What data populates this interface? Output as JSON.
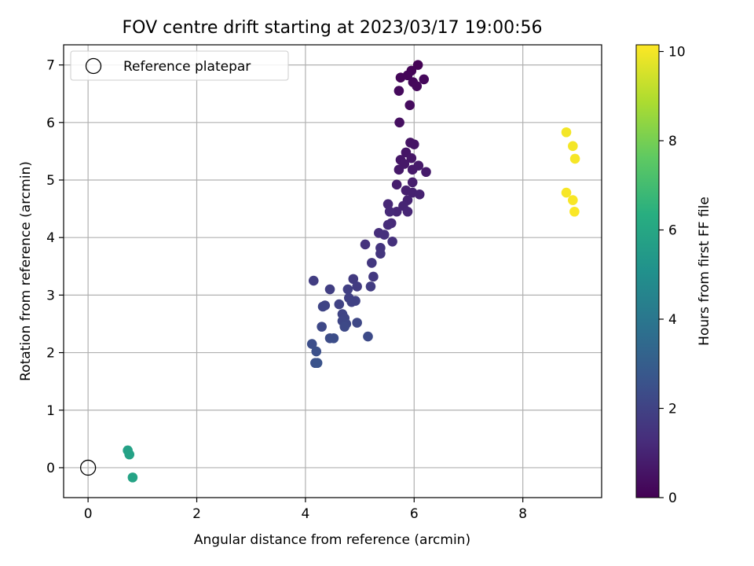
{
  "chart_data": {
    "type": "scatter",
    "title": "FOV centre drift starting at 2023/03/17 19:00:56",
    "xlabel": "Angular distance from reference (arcmin)",
    "ylabel": "Rotation from reference (arcmin)",
    "xlim": [
      -0.45,
      9.45
    ],
    "ylim": [
      -0.52,
      7.35
    ],
    "xticks": [
      0,
      2,
      4,
      6,
      8
    ],
    "yticks": [
      0,
      1,
      2,
      3,
      4,
      5,
      6,
      7
    ],
    "grid": true,
    "legend": {
      "position": "top-left",
      "entries": [
        "Reference platepar"
      ]
    },
    "reference_point": {
      "x": 0,
      "y": 0
    },
    "colorbar": {
      "label": "Hours from first FF file",
      "min": 0,
      "max": 10.15,
      "ticks": [
        0,
        2,
        4,
        6,
        8,
        10
      ],
      "colormap": "viridis"
    },
    "colors": {
      "grid": "#b0b0b0",
      "axis": "#000000"
    },
    "points": [
      {
        "x": 6.07,
        "y": 7.0,
        "t": 0.05
      },
      {
        "x": 5.95,
        "y": 6.9,
        "t": 0.1
      },
      {
        "x": 5.88,
        "y": 6.82,
        "t": 0.12
      },
      {
        "x": 5.75,
        "y": 6.78,
        "t": 0.15
      },
      {
        "x": 5.98,
        "y": 6.7,
        "t": 0.2
      },
      {
        "x": 6.18,
        "y": 6.75,
        "t": 0.22
      },
      {
        "x": 6.05,
        "y": 6.63,
        "t": 0.25
      },
      {
        "x": 5.72,
        "y": 6.55,
        "t": 0.28
      },
      {
        "x": 5.92,
        "y": 6.3,
        "t": 0.32
      },
      {
        "x": 5.73,
        "y": 6.0,
        "t": 0.4
      },
      {
        "x": 5.93,
        "y": 5.65,
        "t": 0.55
      },
      {
        "x": 6.0,
        "y": 5.62,
        "t": 0.58
      },
      {
        "x": 5.85,
        "y": 5.48,
        "t": 0.6
      },
      {
        "x": 5.75,
        "y": 5.35,
        "t": 0.62
      },
      {
        "x": 5.95,
        "y": 5.38,
        "t": 0.65
      },
      {
        "x": 5.82,
        "y": 5.28,
        "t": 0.68
      },
      {
        "x": 5.72,
        "y": 5.18,
        "t": 0.7
      },
      {
        "x": 5.97,
        "y": 5.18,
        "t": 0.72
      },
      {
        "x": 6.08,
        "y": 5.25,
        "t": 0.75
      },
      {
        "x": 6.22,
        "y": 5.14,
        "t": 0.78
      },
      {
        "x": 5.68,
        "y": 4.92,
        "t": 0.82
      },
      {
        "x": 5.97,
        "y": 4.96,
        "t": 0.85
      },
      {
        "x": 5.85,
        "y": 4.82,
        "t": 0.9
      },
      {
        "x": 5.97,
        "y": 4.78,
        "t": 0.95
      },
      {
        "x": 6.1,
        "y": 4.75,
        "t": 0.98
      },
      {
        "x": 5.88,
        "y": 4.65,
        "t": 1.0
      },
      {
        "x": 5.8,
        "y": 4.55,
        "t": 1.05
      },
      {
        "x": 5.88,
        "y": 4.45,
        "t": 1.1
      },
      {
        "x": 5.68,
        "y": 4.45,
        "t": 1.12
      },
      {
        "x": 5.52,
        "y": 4.58,
        "t": 1.15
      },
      {
        "x": 5.55,
        "y": 4.45,
        "t": 1.2
      },
      {
        "x": 5.58,
        "y": 4.25,
        "t": 1.25
      },
      {
        "x": 5.52,
        "y": 4.22,
        "t": 1.3
      },
      {
        "x": 5.35,
        "y": 4.08,
        "t": 1.35
      },
      {
        "x": 5.45,
        "y": 4.05,
        "t": 1.4
      },
      {
        "x": 5.6,
        "y": 3.93,
        "t": 1.45
      },
      {
        "x": 5.1,
        "y": 3.88,
        "t": 1.5
      },
      {
        "x": 5.38,
        "y": 3.82,
        "t": 1.55
      },
      {
        "x": 5.38,
        "y": 3.72,
        "t": 1.6
      },
      {
        "x": 5.22,
        "y": 3.56,
        "t": 1.65
      },
      {
        "x": 5.25,
        "y": 3.32,
        "t": 1.7
      },
      {
        "x": 4.88,
        "y": 3.28,
        "t": 1.75
      },
      {
        "x": 4.95,
        "y": 3.15,
        "t": 1.8
      },
      {
        "x": 5.2,
        "y": 3.15,
        "t": 1.82
      },
      {
        "x": 4.15,
        "y": 3.25,
        "t": 1.85
      },
      {
        "x": 4.45,
        "y": 3.1,
        "t": 1.9
      },
      {
        "x": 4.78,
        "y": 3.1,
        "t": 1.92
      },
      {
        "x": 4.8,
        "y": 2.95,
        "t": 1.95
      },
      {
        "x": 4.92,
        "y": 2.9,
        "t": 1.98
      },
      {
        "x": 4.85,
        "y": 2.88,
        "t": 2.0
      },
      {
        "x": 4.62,
        "y": 2.84,
        "t": 2.02
      },
      {
        "x": 4.36,
        "y": 2.82,
        "t": 2.05
      },
      {
        "x": 4.32,
        "y": 2.8,
        "t": 2.08
      },
      {
        "x": 4.68,
        "y": 2.67,
        "t": 2.1
      },
      {
        "x": 4.72,
        "y": 2.6,
        "t": 2.12
      },
      {
        "x": 4.68,
        "y": 2.55,
        "t": 2.15
      },
      {
        "x": 4.75,
        "y": 2.5,
        "t": 2.18
      },
      {
        "x": 4.95,
        "y": 2.52,
        "t": 2.2
      },
      {
        "x": 4.3,
        "y": 2.45,
        "t": 2.22
      },
      {
        "x": 4.72,
        "y": 2.45,
        "t": 2.25
      },
      {
        "x": 5.15,
        "y": 2.28,
        "t": 2.3
      },
      {
        "x": 4.45,
        "y": 2.25,
        "t": 2.35
      },
      {
        "x": 4.52,
        "y": 2.25,
        "t": 2.4
      },
      {
        "x": 4.12,
        "y": 2.15,
        "t": 2.45
      },
      {
        "x": 4.2,
        "y": 2.02,
        "t": 2.5
      },
      {
        "x": 4.18,
        "y": 1.82,
        "t": 2.55
      },
      {
        "x": 4.22,
        "y": 1.82,
        "t": 2.6
      },
      {
        "x": 0.73,
        "y": 0.3,
        "t": 5.8
      },
      {
        "x": 0.76,
        "y": 0.23,
        "t": 5.85
      },
      {
        "x": 0.82,
        "y": -0.17,
        "t": 5.9
      },
      {
        "x": 8.8,
        "y": 5.83,
        "t": 10.0
      },
      {
        "x": 8.92,
        "y": 5.59,
        "t": 10.02
      },
      {
        "x": 8.96,
        "y": 5.37,
        "t": 10.04
      },
      {
        "x": 8.8,
        "y": 4.78,
        "t": 10.06
      },
      {
        "x": 8.92,
        "y": 4.65,
        "t": 10.08
      },
      {
        "x": 8.95,
        "y": 4.45,
        "t": 10.1
      }
    ]
  }
}
